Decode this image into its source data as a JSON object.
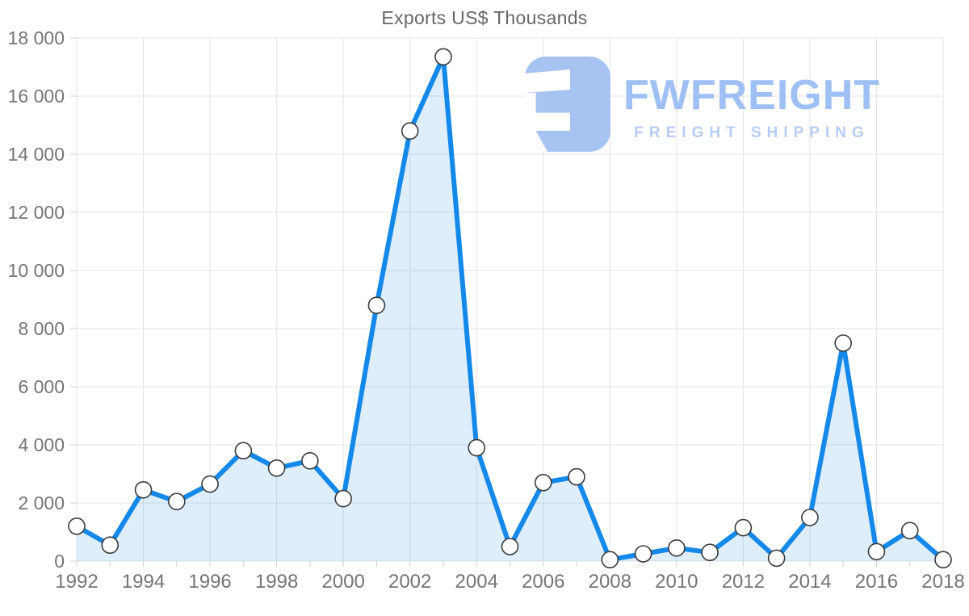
{
  "chart_data": {
    "type": "area",
    "title": "Exports US$ Thousands",
    "series_name": "Exports US$ Thousands",
    "x": [
      1992,
      1993,
      1994,
      1995,
      1996,
      1997,
      1998,
      1999,
      2000,
      2001,
      2002,
      2003,
      2004,
      2005,
      2006,
      2007,
      2008,
      2009,
      2010,
      2011,
      2012,
      2013,
      2014,
      2015,
      2016,
      2017,
      2018
    ],
    "values": [
      1200,
      550,
      2450,
      2050,
      2650,
      3800,
      3200,
      3450,
      2150,
      8800,
      14800,
      17350,
      3900,
      500,
      2700,
      2900,
      50,
      250,
      450,
      300,
      1150,
      100,
      1500,
      7500,
      325,
      1050,
      50
    ],
    "xlim": [
      1992,
      2018
    ],
    "ylim": [
      0,
      18000
    ],
    "grid": true,
    "legend": "none",
    "x_tick_values": [
      1992,
      1994,
      1996,
      1998,
      2000,
      2002,
      2004,
      2006,
      2008,
      2010,
      2012,
      2014,
      2016,
      2018
    ],
    "x_tick_labels": [
      "1992",
      "1994",
      "1996",
      "1998",
      "2000",
      "2002",
      "2004",
      "2006",
      "2008",
      "2010",
      "2012",
      "2014",
      "2016",
      "2018"
    ],
    "y_tick_values": [
      0,
      2000,
      4000,
      6000,
      8000,
      10000,
      12000,
      14000,
      16000,
      18000
    ],
    "y_tick_labels": [
      "0",
      "2 000",
      "4 000",
      "6 000",
      "8 000",
      "10 000",
      "12 000",
      "14 000",
      "16 000",
      "18 000"
    ],
    "colors": {
      "title_color": "#666666",
      "axis_text": "#757575",
      "grid": "#e3e3e3",
      "tick": "#cfcfcf",
      "line": "#1589ea",
      "area_fill": "#1589ea",
      "area_opacity": "0.14",
      "marker_fill": "#ffffff",
      "marker_stroke": "#3a3a3a",
      "logo": "#a7c3f2",
      "brand_color": "#9fc0f4",
      "tagline_color": "#b7cdf7"
    }
  },
  "watermark": {
    "brand": "FWFREIGHT",
    "tagline": "FREIGHT SHIPPING"
  }
}
